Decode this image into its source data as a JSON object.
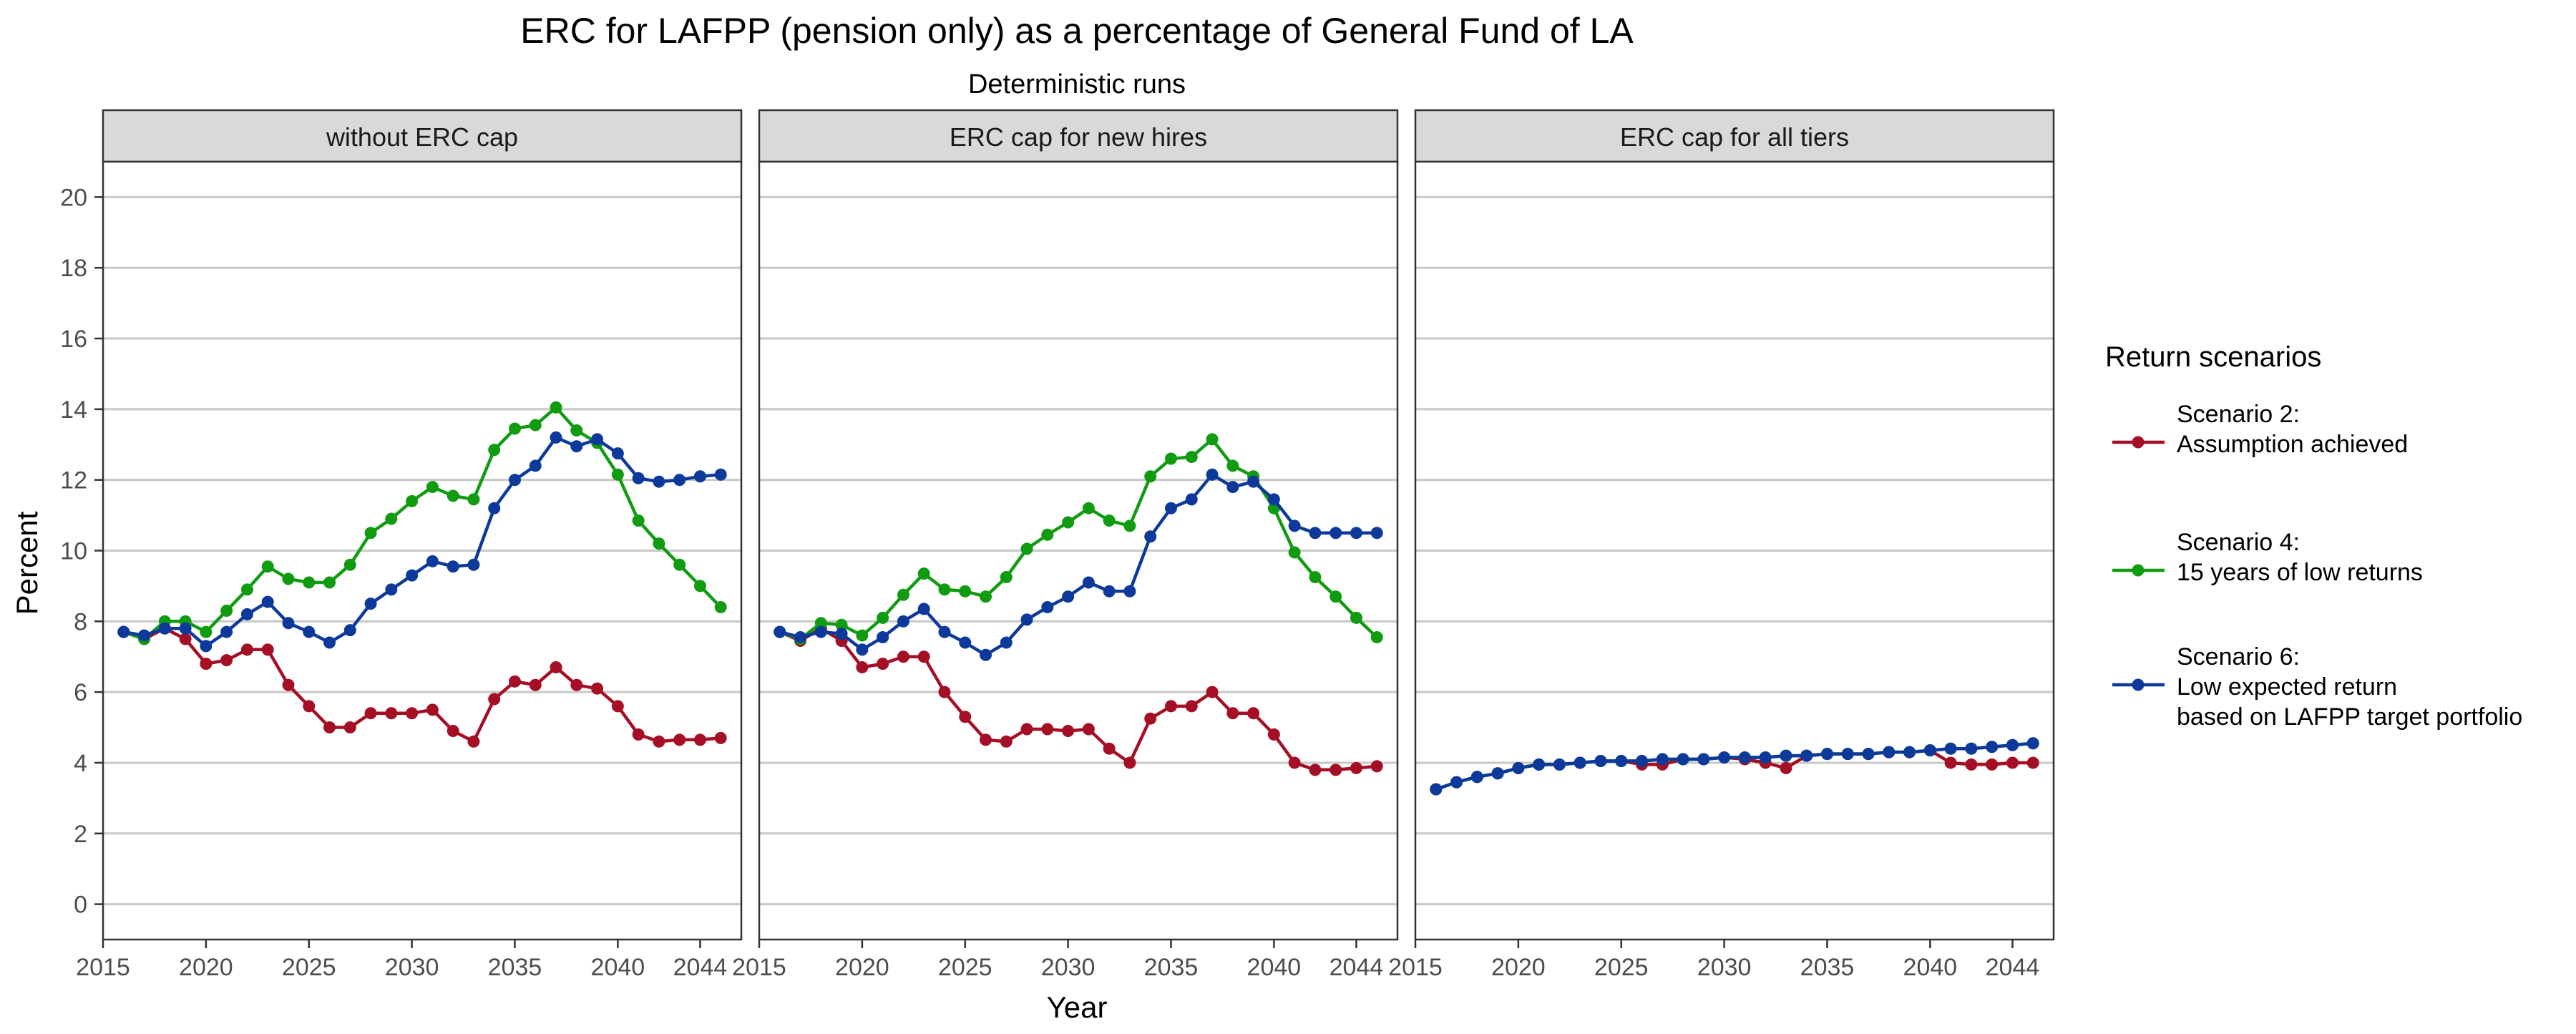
{
  "chart_data": {
    "type": "line",
    "title": "ERC for LAFPP (pension only) as a percentage of General Fund of LA",
    "subtitle": "Deterministic runs",
    "xlabel": "Year",
    "ylabel": "Percent",
    "xlim": [
      2015,
      2046
    ],
    "ylim": [
      -1,
      21
    ],
    "xticks": [
      2015,
      2020,
      2025,
      2030,
      2035,
      2040,
      2044
    ],
    "yticks": [
      0,
      2,
      4,
      6,
      8,
      10,
      12,
      14,
      16,
      18,
      20
    ],
    "grid": "horizontal",
    "legend": {
      "title": "Return scenarios",
      "position": "right",
      "entries": [
        {
          "series": "Scenario 2",
          "lines": [
            "Scenario 2:",
            "Assumption achieved"
          ],
          "color": "#a50f25"
        },
        {
          "series": "Scenario 4",
          "lines": [
            "Scenario 4:",
            "15 years of low returns"
          ],
          "color": "#119b11"
        },
        {
          "series": "Scenario 6",
          "lines": [
            "Scenario 6:",
            "Low expected return",
            "based on LAFPP target portfolio"
          ],
          "color": "#0d3a9a"
        }
      ]
    },
    "x": [
      2016,
      2017,
      2018,
      2019,
      2020,
      2021,
      2022,
      2023,
      2024,
      2025,
      2026,
      2027,
      2028,
      2029,
      2030,
      2031,
      2032,
      2033,
      2034,
      2035,
      2036,
      2037,
      2038,
      2039,
      2040,
      2041,
      2042,
      2043,
      2044,
      2045
    ],
    "panels": [
      {
        "title": "without ERC cap",
        "series": [
          {
            "name": "Scenario 2",
            "color": "#a50f25",
            "values": [
              7.7,
              7.5,
              7.8,
              7.5,
              6.8,
              6.9,
              7.2,
              7.2,
              6.2,
              5.6,
              5.0,
              5.0,
              5.4,
              5.4,
              5.4,
              5.5,
              4.9,
              4.6,
              5.8,
              6.3,
              6.2,
              6.7,
              6.2,
              6.1,
              5.6,
              4.8,
              4.6,
              4.65,
              4.65,
              4.7
            ]
          },
          {
            "name": "Scenario 4",
            "color": "#119b11",
            "values": [
              7.7,
              7.5,
              8.0,
              8.0,
              7.7,
              8.3,
              8.9,
              9.55,
              9.2,
              9.1,
              9.1,
              9.6,
              10.5,
              10.9,
              11.4,
              11.8,
              11.55,
              11.45,
              12.85,
              13.45,
              13.55,
              14.05,
              13.4,
              13.05,
              12.15,
              10.85,
              10.2,
              9.6,
              9.0,
              8.4
            ]
          },
          {
            "name": "Scenario 6",
            "color": "#0d3a9a",
            "values": [
              7.7,
              7.6,
              7.8,
              7.8,
              7.3,
              7.7,
              8.2,
              8.55,
              7.95,
              7.7,
              7.4,
              7.75,
              8.5,
              8.9,
              9.3,
              9.7,
              9.55,
              9.6,
              11.2,
              12.0,
              12.4,
              13.2,
              12.95,
              13.15,
              12.75,
              12.05,
              11.95,
              12.0,
              12.1,
              12.15
            ]
          }
        ]
      },
      {
        "title": "ERC cap for new hires",
        "series": [
          {
            "name": "Scenario 2",
            "color": "#a50f25",
            "values": [
              7.7,
              7.45,
              7.8,
              7.45,
              6.7,
              6.8,
              7.0,
              7.0,
              6.0,
              5.3,
              4.65,
              4.6,
              4.95,
              4.95,
              4.9,
              4.95,
              4.4,
              4.0,
              5.25,
              5.6,
              5.6,
              6.0,
              5.4,
              5.4,
              4.8,
              4.0,
              3.8,
              3.8,
              3.85,
              3.9
            ]
          },
          {
            "name": "Scenario 4",
            "color": "#119b11",
            "values": [
              7.7,
              7.5,
              7.95,
              7.9,
              7.6,
              8.1,
              8.75,
              9.35,
              8.9,
              8.85,
              8.7,
              9.25,
              10.05,
              10.45,
              10.8,
              11.2,
              10.85,
              10.7,
              12.1,
              12.6,
              12.65,
              13.15,
              12.4,
              12.1,
              11.2,
              9.95,
              9.25,
              8.7,
              8.1,
              7.55
            ]
          },
          {
            "name": "Scenario 6",
            "color": "#0d3a9a",
            "values": [
              7.7,
              7.55,
              7.7,
              7.65,
              7.2,
              7.55,
              8.0,
              8.35,
              7.7,
              7.4,
              7.05,
              7.4,
              8.05,
              8.4,
              8.7,
              9.1,
              8.85,
              8.85,
              10.4,
              11.2,
              11.45,
              12.15,
              11.8,
              11.95,
              11.45,
              10.7,
              10.5,
              10.5,
              10.5,
              10.5
            ]
          }
        ]
      },
      {
        "title": "ERC cap for all tiers",
        "series": [
          {
            "name": "Scenario 2",
            "color": "#a50f25",
            "values": [
              3.25,
              3.45,
              3.6,
              3.7,
              3.85,
              3.95,
              3.95,
              4.0,
              4.05,
              4.05,
              3.95,
              3.95,
              4.1,
              4.1,
              4.15,
              4.1,
              4.0,
              3.85,
              4.2,
              4.25,
              4.25,
              4.25,
              4.3,
              4.3,
              4.35,
              4.0,
              3.95,
              3.95,
              4.0,
              4.0
            ]
          },
          {
            "name": "Scenario 4",
            "color": "#119b11",
            "values": [
              3.25,
              3.45,
              3.6,
              3.7,
              3.85,
              3.95,
              3.95,
              4.0,
              4.05,
              4.05,
              4.05,
              4.1,
              4.1,
              4.1,
              4.15,
              4.15,
              4.15,
              4.2,
              4.2,
              4.25,
              4.25,
              4.25,
              4.3,
              4.3,
              4.35,
              4.4,
              4.4,
              4.45,
              4.5,
              4.55
            ]
          },
          {
            "name": "Scenario 6",
            "color": "#0d3a9a",
            "values": [
              3.25,
              3.45,
              3.6,
              3.7,
              3.85,
              3.95,
              3.95,
              4.0,
              4.05,
              4.05,
              4.05,
              4.1,
              4.1,
              4.1,
              4.15,
              4.15,
              4.15,
              4.2,
              4.2,
              4.25,
              4.25,
              4.25,
              4.3,
              4.3,
              4.35,
              4.4,
              4.4,
              4.45,
              4.5,
              4.55
            ]
          }
        ]
      }
    ]
  }
}
